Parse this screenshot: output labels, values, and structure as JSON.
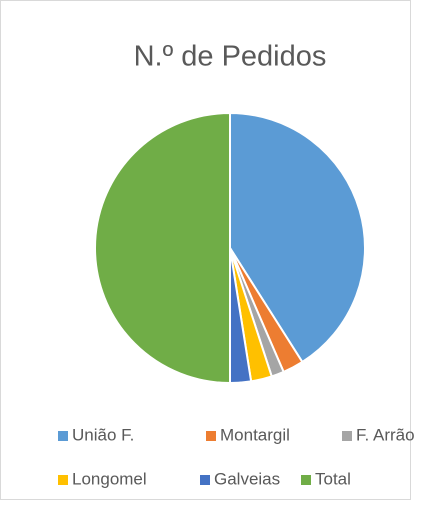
{
  "chart_data": {
    "type": "pie",
    "title": "N.º de Pedidos",
    "categories": [
      "União F.",
      "Montargil",
      "F. Arrão",
      "Longomel",
      "Galveias",
      "Total"
    ],
    "values": [
      41,
      2.5,
      1.5,
      2.5,
      2.5,
      50
    ],
    "colors": [
      "#5b9bd5",
      "#ed7d31",
      "#a5a5a5",
      "#ffc000",
      "#4472c4",
      "#70ad47"
    ],
    "legend": "bottom"
  }
}
